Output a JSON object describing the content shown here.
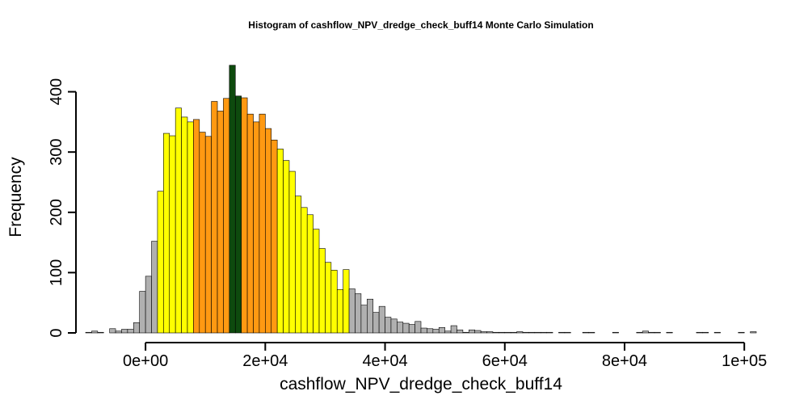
{
  "chart_data": {
    "type": "bar",
    "title": "Histogram of  cashflow_NPV_dredge_check_buff14  Monte Carlo Simulation",
    "xlabel": "cashflow_NPV_dredge_check_buff14",
    "ylabel": "Frequency",
    "xlim": [
      -10000,
      102000
    ],
    "ylim": [
      0,
      445
    ],
    "bin_width": 1000,
    "bin_start": -10000,
    "x_ticks": [
      {
        "value": 0,
        "label": "0e+00"
      },
      {
        "value": 20000,
        "label": "2e+04"
      },
      {
        "value": 40000,
        "label": "4e+04"
      },
      {
        "value": 60000,
        "label": "6e+04"
      },
      {
        "value": 80000,
        "label": "8e+04"
      },
      {
        "value": 100000,
        "label": "1e+05"
      }
    ],
    "y_ticks": [
      {
        "value": 0,
        "label": "0"
      },
      {
        "value": 100,
        "label": "100"
      },
      {
        "value": 200,
        "label": "200"
      },
      {
        "value": 300,
        "label": "300"
      },
      {
        "value": 400,
        "label": "400"
      }
    ],
    "colors": {
      "gray": "#b0b0b0",
      "yellow": "#ffff00",
      "orange": "#ff9912",
      "green": "#0e4a0e"
    },
    "values": [
      1,
      3,
      1,
      0,
      7,
      3,
      6,
      6,
      17,
      69,
      94,
      152,
      235,
      331,
      327,
      373,
      358,
      350,
      354,
      333,
      326,
      384,
      368,
      389,
      444,
      393,
      390,
      363,
      350,
      363,
      339,
      320,
      305,
      286,
      268,
      227,
      208,
      196,
      172,
      140,
      117,
      104,
      72,
      105,
      73,
      65,
      46,
      56,
      34,
      44,
      26,
      23,
      18,
      16,
      14,
      19,
      8,
      7,
      6,
      9,
      3,
      12,
      5,
      1,
      5,
      4,
      2,
      2,
      1,
      1,
      1,
      1,
      2,
      1,
      1,
      1,
      1,
      1,
      0,
      1,
      1,
      0,
      0,
      1,
      1,
      0,
      0,
      0,
      1,
      0,
      0,
      0,
      1,
      3,
      1,
      1,
      0,
      1,
      0,
      0,
      0,
      0,
      1,
      1,
      0,
      1,
      0,
      0,
      0,
      1,
      0,
      2
    ],
    "bar_colors": [
      "gray",
      "gray",
      "gray",
      "gray",
      "gray",
      "gray",
      "gray",
      "gray",
      "gray",
      "gray",
      "gray",
      "gray",
      "yellow",
      "yellow",
      "yellow",
      "yellow",
      "yellow",
      "yellow",
      "orange",
      "orange",
      "orange",
      "orange",
      "orange",
      "orange",
      "green",
      "green",
      "orange",
      "orange",
      "orange",
      "orange",
      "orange",
      "orange",
      "yellow",
      "yellow",
      "yellow",
      "yellow",
      "yellow",
      "yellow",
      "yellow",
      "yellow",
      "yellow",
      "yellow",
      "yellow",
      "yellow",
      "gray",
      "gray",
      "gray",
      "gray",
      "gray",
      "gray",
      "gray",
      "gray",
      "gray",
      "gray",
      "gray",
      "gray",
      "gray",
      "gray",
      "gray",
      "gray",
      "gray",
      "gray",
      "gray",
      "gray",
      "gray",
      "gray",
      "gray",
      "gray",
      "gray",
      "gray",
      "gray",
      "gray",
      "gray",
      "gray",
      "gray",
      "gray",
      "gray",
      "gray",
      "gray",
      "gray",
      "gray",
      "gray",
      "gray",
      "gray",
      "gray",
      "gray",
      "gray",
      "gray",
      "gray",
      "gray",
      "gray",
      "gray",
      "gray",
      "gray",
      "gray",
      "gray",
      "gray",
      "gray",
      "gray",
      "gray",
      "gray",
      "gray",
      "gray",
      "gray",
      "gray",
      "gray",
      "gray",
      "gray",
      "gray",
      "gray",
      "gray",
      "gray"
    ]
  }
}
